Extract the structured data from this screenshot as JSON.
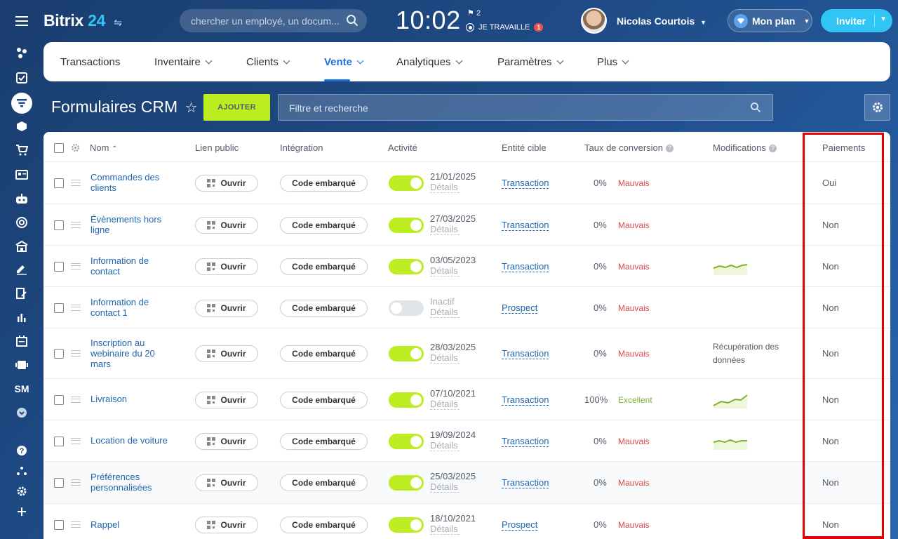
{
  "header": {
    "logo_main": "Bitrix",
    "logo_num": "24",
    "search_placeholder": "chercher un employé, un docum...",
    "clock": "10:02",
    "flag_count": "2",
    "work_status": "JE TRAVAILLE",
    "work_badge": "1",
    "user_name": "Nicolas Courtois",
    "plan_label": "Mon plan",
    "invite_label": "Inviter"
  },
  "nav": {
    "items": [
      {
        "label": "Transactions"
      },
      {
        "label": "Inventaire"
      },
      {
        "label": "Clients"
      },
      {
        "label": "Vente"
      },
      {
        "label": "Analytiques"
      },
      {
        "label": "Paramètres"
      },
      {
        "label": "Plus"
      }
    ]
  },
  "page": {
    "title": "Formulaires CRM",
    "add_button": "AJOUTER",
    "filter_placeholder": "Filtre et recherche"
  },
  "sidebar": {
    "sm_label": "SM"
  },
  "table": {
    "columns": {
      "name": "Nom",
      "public_link": "Lien public",
      "integration": "Intégration",
      "activity": "Activité",
      "target": "Entité cible",
      "conversion": "Taux de conversion",
      "modifications": "Modifications",
      "payments": "Paiements"
    },
    "open_label": "Ouvrir",
    "embed_label": "Code embarqué",
    "details_label": "Détails",
    "rows": [
      {
        "name": "Commandes des clients",
        "active": true,
        "date": "21/01/2025",
        "target": "Transaction",
        "pct": "0%",
        "rate": "Mauvais",
        "mod": "",
        "chart": false,
        "pay": "Oui"
      },
      {
        "name": "Évènements hors ligne",
        "active": true,
        "date": "27/03/2025",
        "target": "Transaction",
        "pct": "0%",
        "rate": "Mauvais",
        "mod": "",
        "chart": false,
        "pay": "Non"
      },
      {
        "name": "Information de contact",
        "active": true,
        "date": "03/05/2023",
        "target": "Transaction",
        "pct": "0%",
        "rate": "Mauvais",
        "mod": "",
        "chart": true,
        "pay": "Non"
      },
      {
        "name": "Information de contact 1",
        "active": false,
        "date": "Inactif",
        "target": "Prospect",
        "pct": "0%",
        "rate": "Mauvais",
        "mod": "",
        "chart": false,
        "pay": "Non"
      },
      {
        "name": "Inscription au webinaire du 20 mars",
        "active": true,
        "date": "28/03/2025",
        "target": "Transaction",
        "pct": "0%",
        "rate": "Mauvais",
        "mod": "Récupération des données",
        "chart": false,
        "pay": "Non"
      },
      {
        "name": "Livraison",
        "active": true,
        "date": "07/10/2021",
        "target": "Transaction",
        "pct": "100%",
        "rate": "Excellent",
        "mod": "",
        "chart": true,
        "pay": "Non"
      },
      {
        "name": "Location de voiture",
        "active": true,
        "date": "19/09/2024",
        "target": "Transaction",
        "pct": "0%",
        "rate": "Mauvais",
        "mod": "",
        "chart": true,
        "pay": "Non"
      },
      {
        "name": "Préférences personnalisées",
        "active": true,
        "date": "25/03/2025",
        "target": "Transaction",
        "pct": "0%",
        "rate": "Mauvais",
        "mod": "",
        "chart": false,
        "pay": "Non"
      },
      {
        "name": "Rappel",
        "active": true,
        "date": "18/10/2021",
        "target": "Prospect",
        "pct": "0%",
        "rate": "Mauvais",
        "mod": "",
        "chart": false,
        "pay": "Non"
      }
    ]
  },
  "colors": {
    "accent": "#2fc6f6",
    "add_button": "#bbed21",
    "link": "#2067b0",
    "bad": "#e04848",
    "good": "#7bb32e",
    "highlight": "#e30000"
  }
}
